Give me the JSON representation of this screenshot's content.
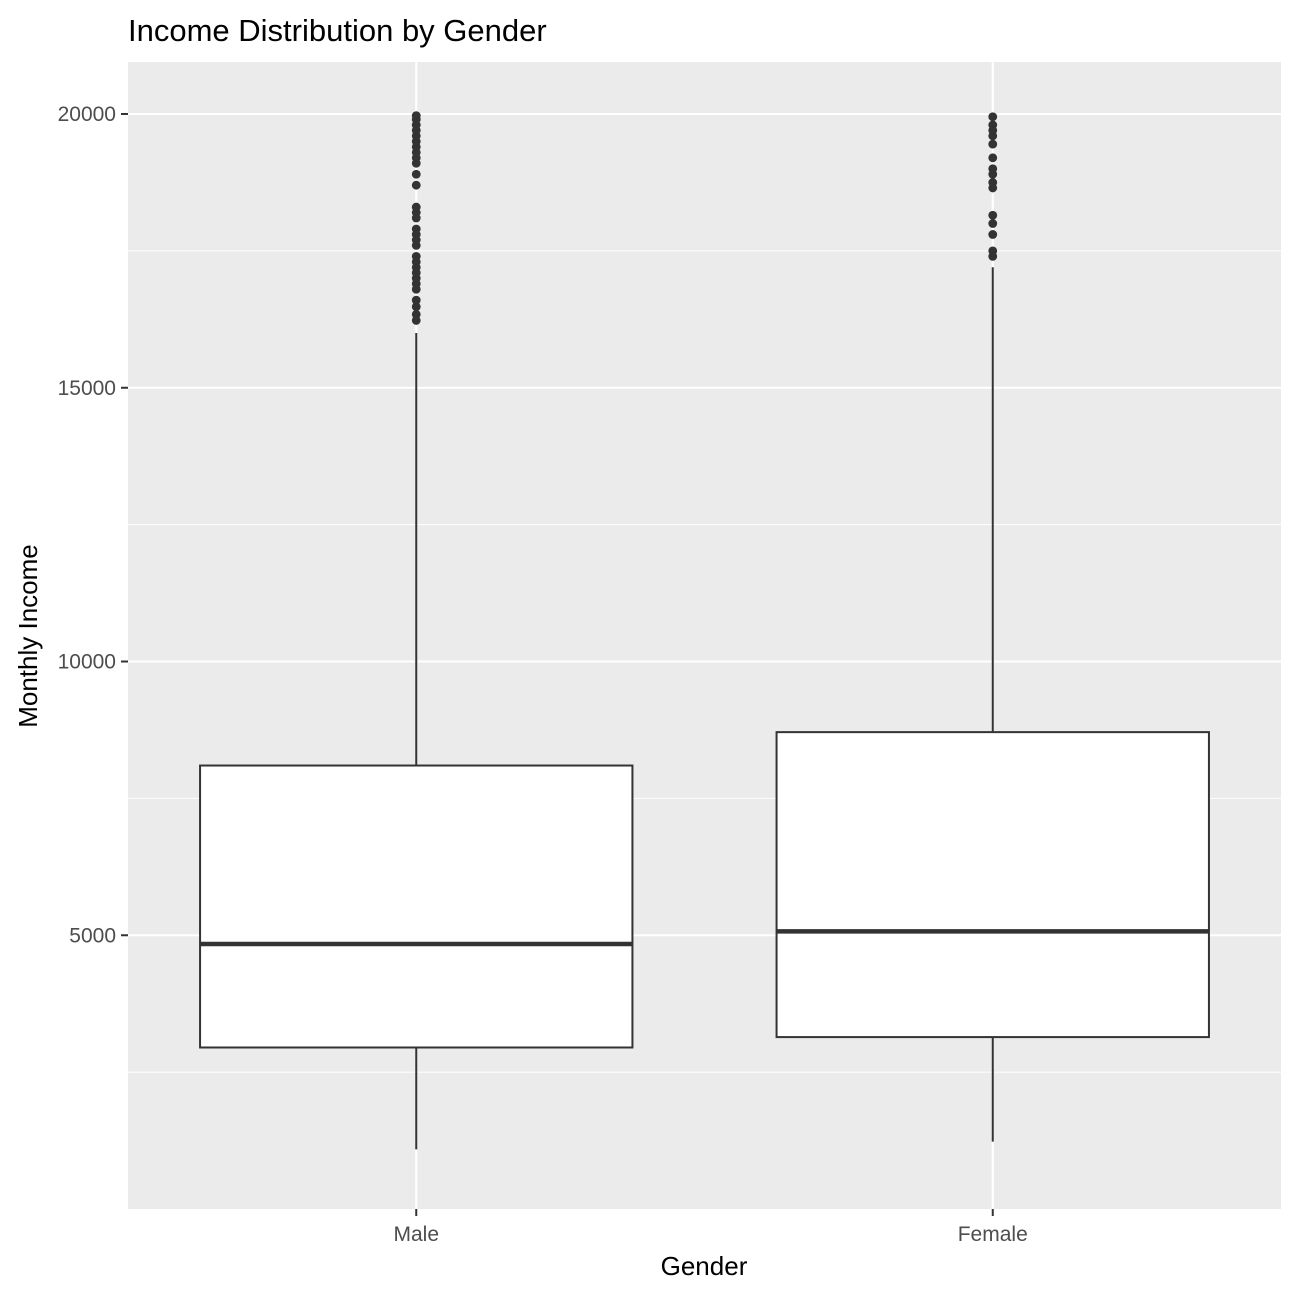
{
  "chart_data": {
    "type": "boxplot",
    "title": "Income Distribution by Gender",
    "xlabel": "Gender",
    "ylabel": "Monthly Income",
    "categories": [
      "Male",
      "Female"
    ],
    "y_ticks": [
      5000,
      10000,
      15000,
      20000
    ],
    "ylim": [
      0,
      20950
    ],
    "grid": true,
    "panel_background": "#ebebeb",
    "grid_color": "#ffffff",
    "box_fill": "#ffffff",
    "line_color": "#333333",
    "boxes": [
      {
        "category": "Male",
        "whisker_low": 1090,
        "q1": 2950,
        "median": 4840,
        "q3": 8100,
        "whisker_high": 16000,
        "outliers": [
          16230,
          16340,
          16480,
          16600,
          16800,
          16900,
          17000,
          17100,
          17200,
          17300,
          17400,
          17600,
          17700,
          17800,
          17900,
          18100,
          18200,
          18300,
          18700,
          18900,
          19100,
          19200,
          19300,
          19400,
          19500,
          19600,
          19700,
          19800,
          19900,
          19970
        ]
      },
      {
        "category": "Female",
        "whisker_low": 1230,
        "q1": 3140,
        "median": 5070,
        "q3": 8710,
        "whisker_high": 17200,
        "outliers": [
          17400,
          17500,
          17800,
          18000,
          18150,
          18650,
          18750,
          18900,
          19000,
          19200,
          19450,
          19600,
          19700,
          19800,
          19950
        ]
      }
    ]
  }
}
